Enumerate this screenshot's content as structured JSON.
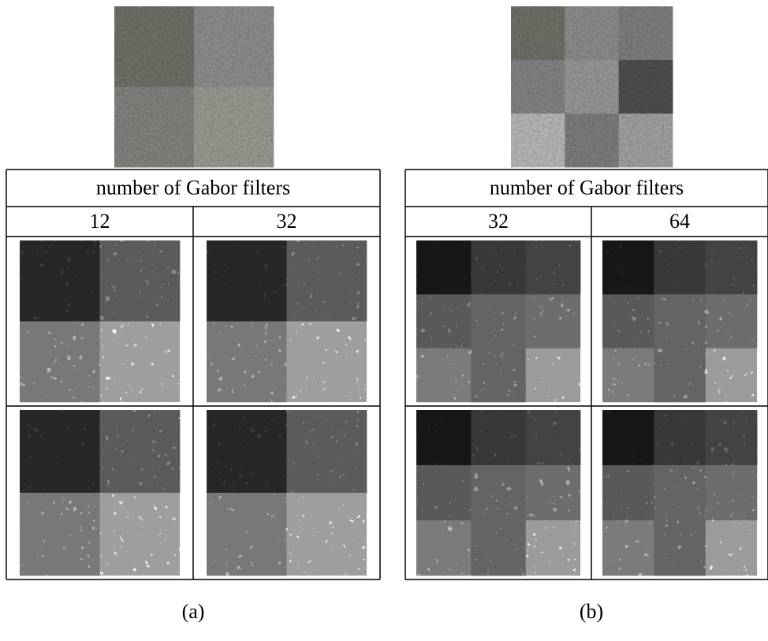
{
  "panels": [
    {
      "caption": "(a)",
      "table": {
        "header": "number of Gabor filters",
        "columns": [
          "12",
          "32"
        ]
      }
    },
    {
      "caption": "(b)",
      "table": {
        "header": "number of Gabor filters",
        "columns": [
          "32",
          "64"
        ]
      }
    }
  ]
}
